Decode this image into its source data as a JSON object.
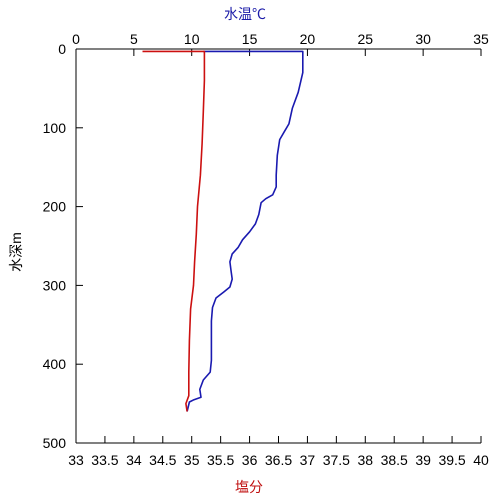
{
  "chart_data": {
    "type": "line",
    "title": "",
    "ylabel": "水深m",
    "ylim": [
      0,
      500
    ],
    "y_reversed": true,
    "yticks": [
      0,
      100,
      200,
      300,
      400,
      500
    ],
    "top_axis": {
      "label": "水温℃",
      "range": [
        0,
        35
      ],
      "ticks": [
        0,
        5,
        10,
        15,
        20,
        25,
        30,
        35
      ],
      "color": "#1a1aa8"
    },
    "bottom_axis": {
      "label": "塩分",
      "range": [
        33,
        40
      ],
      "ticks": [
        33,
        33.5,
        34,
        34.5,
        35,
        35.5,
        36,
        36.5,
        37,
        37.5,
        38,
        38.5,
        39,
        39.5,
        40
      ],
      "color": "#c01010"
    },
    "grid": false,
    "series": [
      {
        "axis": "top",
        "color": "#1a1ab0",
        "points": [
          [
            11,
            3
          ],
          [
            19.6,
            3
          ],
          [
            19.6,
            30
          ],
          [
            19.2,
            55
          ],
          [
            18.7,
            75
          ],
          [
            18.4,
            95
          ],
          [
            18.0,
            105
          ],
          [
            17.6,
            115
          ],
          [
            17.4,
            135
          ],
          [
            17.3,
            160
          ],
          [
            17.3,
            175
          ],
          [
            17.0,
            185
          ],
          [
            16.4,
            190
          ],
          [
            16.0,
            195
          ],
          [
            15.8,
            210
          ],
          [
            15.5,
            222
          ],
          [
            15.0,
            232
          ],
          [
            14.4,
            242
          ],
          [
            14.0,
            252
          ],
          [
            13.5,
            260
          ],
          [
            13.3,
            270
          ],
          [
            13.4,
            282
          ],
          [
            13.5,
            292
          ],
          [
            13.3,
            302
          ],
          [
            12.8,
            308
          ],
          [
            12.1,
            316
          ],
          [
            11.8,
            328
          ],
          [
            11.7,
            345
          ],
          [
            11.7,
            375
          ],
          [
            11.7,
            395
          ],
          [
            11.6,
            410
          ],
          [
            11.0,
            420
          ],
          [
            10.7,
            432
          ],
          [
            10.8,
            442
          ],
          [
            10.2,
            445
          ],
          [
            9.8,
            448
          ],
          [
            9.6,
            460
          ]
        ]
      },
      {
        "axis": "bottom",
        "color": "#cc1010",
        "points": [
          [
            34.15,
            3
          ],
          [
            35.22,
            3
          ],
          [
            35.22,
            40
          ],
          [
            35.2,
            80
          ],
          [
            35.18,
            120
          ],
          [
            35.15,
            160
          ],
          [
            35.1,
            200
          ],
          [
            35.08,
            235
          ],
          [
            35.05,
            270
          ],
          [
            35.03,
            300
          ],
          [
            34.98,
            330
          ],
          [
            34.96,
            370
          ],
          [
            34.95,
            410
          ],
          [
            34.95,
            440
          ],
          [
            34.9,
            450
          ],
          [
            34.92,
            460
          ]
        ]
      }
    ]
  }
}
